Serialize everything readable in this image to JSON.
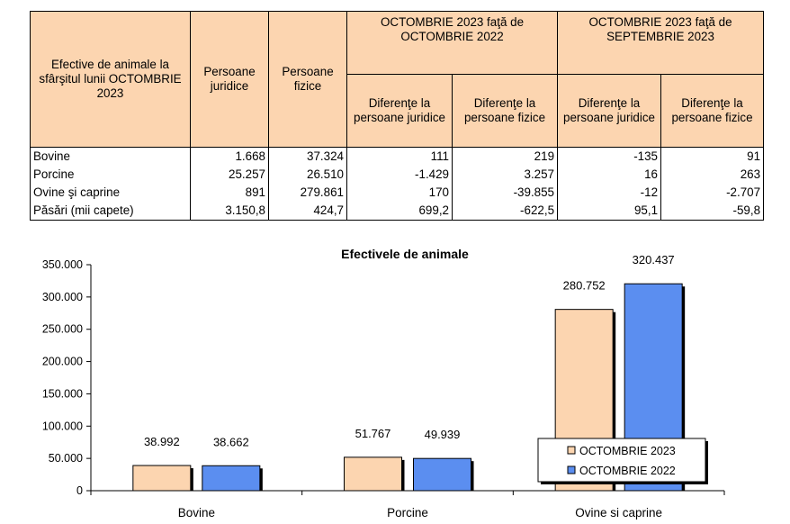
{
  "table": {
    "header": {
      "col1": "Efective de animale la sfârşitul lunii OCTOMBRIE 2023",
      "col2": "Persoane juridice",
      "col3": "Persoane fizice",
      "group1": "OCTOMBRIE 2023 faţă de OCTOMBRIE 2022",
      "group2": "OCTOMBRIE 2023 faţă de SEPTEMBRIE 2023",
      "sub1": "Diferenţe la persoane juridice",
      "sub2": "Diferenţe la persoane fizice",
      "sub3": "Diferenţe la persoane juridice",
      "sub4": "Diferenţe la persoane fizice"
    },
    "rows": [
      {
        "label": "Bovine",
        "pj": "1.668",
        "pf": "37.324",
        "d1pj": "111",
        "d1pf": "219",
        "d2pj": "-135",
        "d2pf": "91"
      },
      {
        "label": "Porcine",
        "pj": "25.257",
        "pf": "26.510",
        "d1pj": "-1.429",
        "d1pf": "3.257",
        "d2pj": "16",
        "d2pf": "263"
      },
      {
        "label": "Ovine şi caprine",
        "pj": "891",
        "pf": "279.861",
        "d1pj": "170",
        "d1pf": "-39.855",
        "d2pj": "-12",
        "d2pf": "-2.707"
      },
      {
        "label": "Păsări (mii capete)",
        "pj": "3.150,8",
        "pf": "424,7",
        "d1pj": "699,2",
        "d1pf": "-622,5",
        "d2pj": "95,1",
        "d2pf": "-59,8"
      }
    ]
  },
  "chart_data": {
    "type": "bar",
    "title": "Efectivele de animale",
    "categories": [
      "Bovine",
      "Porcine",
      "Ovine si caprine"
    ],
    "series": [
      {
        "name": "OCTOMBRIE 2023",
        "values": [
          38992,
          51767,
          280752
        ],
        "labels": [
          "38.992",
          "51.767",
          "280.752"
        ],
        "color": "#fcd5b0"
      },
      {
        "name": "OCTOMBRIE 2022",
        "values": [
          38662,
          49939,
          320437
        ],
        "labels": [
          "38.662",
          "49.939",
          "320.437"
        ],
        "color": "#5b8ef0"
      }
    ],
    "ylim": [
      0,
      350000
    ],
    "yticks": [
      0,
      50000,
      100000,
      150000,
      200000,
      250000,
      300000,
      350000
    ],
    "ytick_labels": [
      "0",
      "50.000",
      "100.000",
      "150.000",
      "200.000",
      "250.000",
      "300.000",
      "350.000"
    ],
    "xlabel": "",
    "ylabel": "",
    "legend_position": "inside-right-bottom",
    "grid": false
  }
}
